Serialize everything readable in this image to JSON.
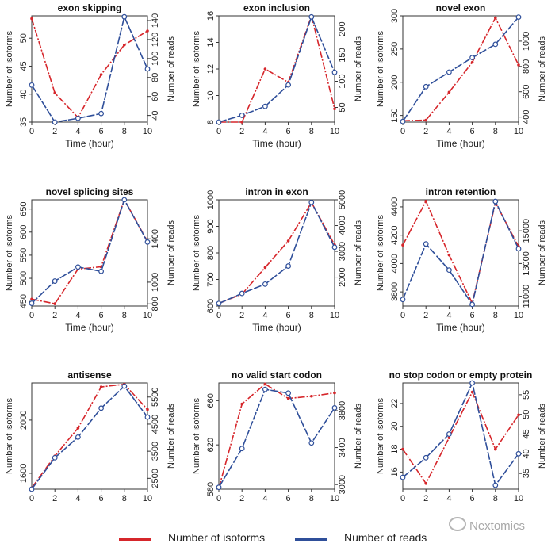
{
  "colors": {
    "isoforms": "#d6262b",
    "reads": "#2f4f9a",
    "axis": "#333333"
  },
  "chart_data": [
    {
      "type": "line",
      "title": "exon skipping",
      "xlabel": "Time (hour)",
      "ylabel_left": "Number of isoforms",
      "ylabel_right": "Number of reads",
      "x": [
        0,
        2,
        4,
        6,
        8,
        10
      ],
      "xlim": [
        0,
        10
      ],
      "xticks": [
        0,
        2,
        4,
        6,
        8,
        10
      ],
      "ylim_left": [
        35,
        54
      ],
      "yticks_left": [
        35,
        40,
        45,
        50
      ],
      "ylim_right": [
        33,
        145
      ],
      "yticks_right": [
        40,
        60,
        80,
        100,
        120,
        140
      ],
      "series": [
        {
          "name": "Number of isoforms",
          "axis": "left",
          "values": [
            53.5,
            40.2,
            35.8,
            43.5,
            48.8,
            51.3
          ]
        },
        {
          "name": "Number of reads",
          "axis": "right",
          "values": [
            72,
            33,
            37,
            42,
            144,
            89
          ]
        }
      ]
    },
    {
      "type": "line",
      "title": "exon inclusion",
      "xlabel": "Time (hour)",
      "ylabel_left": "Number of isoforms",
      "ylabel_right": "Number of reads",
      "x": [
        0,
        2,
        4,
        6,
        8,
        10
      ],
      "xlim": [
        0,
        10
      ],
      "xticks": [
        0,
        2,
        4,
        6,
        8,
        10
      ],
      "ylim_left": [
        8,
        16
      ],
      "yticks_left": [
        8,
        10,
        12,
        14,
        16
      ],
      "ylim_right": [
        22,
        225
      ],
      "yticks_right": [
        50,
        100,
        150,
        200
      ],
      "series": [
        {
          "name": "Number of isoforms",
          "axis": "left",
          "values": [
            8,
            8,
            12,
            11,
            16,
            9
          ]
        },
        {
          "name": "Number of reads",
          "axis": "right",
          "values": [
            22,
            35,
            52,
            93,
            223,
            117
          ]
        }
      ]
    },
    {
      "type": "line",
      "title": "novel exon",
      "xlabel": "Time (hour)",
      "ylabel_left": "Number of isoforms",
      "ylabel_right": "Number of reads",
      "x": [
        0,
        2,
        4,
        6,
        8,
        10
      ],
      "xlim": [
        0,
        10
      ],
      "xticks": [
        0,
        2,
        4,
        6,
        8,
        10
      ],
      "ylim_left": [
        140,
        300
      ],
      "yticks_left": [
        150,
        200,
        250,
        300
      ],
      "ylim_right": [
        360,
        1200
      ],
      "yticks_right": [
        400,
        600,
        800,
        1000
      ],
      "series": [
        {
          "name": "Number of isoforms",
          "axis": "left",
          "values": [
            142,
            143,
            185,
            230,
            297,
            226
          ]
        },
        {
          "name": "Number of reads",
          "axis": "right",
          "values": [
            365,
            640,
            755,
            870,
            975,
            1190
          ]
        }
      ]
    },
    {
      "type": "line",
      "title": "novel splicing sites",
      "xlabel": "Time (hour)",
      "ylabel_left": "Number of isoforms",
      "ylabel_right": "Number of reads",
      "x": [
        0,
        2,
        4,
        6,
        8,
        10
      ],
      "xlim": [
        0,
        10
      ],
      "xticks": [
        0,
        2,
        4,
        6,
        8,
        10
      ],
      "ylim_left": [
        440,
        670
      ],
      "yticks_left": [
        450,
        500,
        550,
        600,
        650
      ],
      "ylim_right": [
        780,
        1760
      ],
      "yticks_right": [
        800,
        1000,
        1400
      ],
      "series": [
        {
          "name": "Number of isoforms",
          "axis": "left",
          "values": [
            455,
            445,
            520,
            525,
            670,
            580
          ]
        },
        {
          "name": "Number of reads",
          "axis": "right",
          "values": [
            805,
            1010,
            1140,
            1100,
            1760,
            1370
          ]
        }
      ]
    },
    {
      "type": "line",
      "title": "intron in exon",
      "xlabel": "Time (hour)",
      "ylabel_left": "Number of isoforms",
      "ylabel_right": "Number of reads",
      "x": [
        0,
        2,
        4,
        6,
        8,
        10
      ],
      "xlim": [
        0,
        10
      ],
      "xticks": [
        0,
        2,
        4,
        6,
        8,
        10
      ],
      "ylim_left": [
        600,
        1000
      ],
      "yticks_left": [
        600,
        700,
        800,
        900,
        1000
      ],
      "ylim_right": [
        880,
        5000
      ],
      "yticks_right": [
        2000,
        3000,
        4000,
        5000
      ],
      "series": [
        {
          "name": "Number of isoforms",
          "axis": "left",
          "values": [
            610,
            645,
            745,
            845,
            990,
            830
          ]
        },
        {
          "name": "Number of reads",
          "axis": "right",
          "values": [
            980,
            1370,
            1730,
            2430,
            4900,
            3160
          ]
        }
      ]
    },
    {
      "type": "line",
      "title": "intron retention",
      "xlabel": "Time (hour)",
      "ylabel_left": "Number of isoforms",
      "ylabel_right": "Number of reads",
      "x": [
        0,
        2,
        4,
        6,
        8,
        10
      ],
      "xlim": [
        0,
        10
      ],
      "xticks": [
        0,
        2,
        4,
        6,
        8,
        10
      ],
      "ylim_left": [
        3700,
        4450
      ],
      "yticks_left": [
        3800,
        4000,
        4200,
        4400
      ],
      "ylim_right": [
        10400,
        16900
      ],
      "yticks_right": [
        11000,
        13000,
        15000
      ],
      "series": [
        {
          "name": "Number of isoforms",
          "axis": "left",
          "values": [
            4130,
            4440,
            4060,
            3720,
            4430,
            4120
          ]
        },
        {
          "name": "Number of reads",
          "axis": "right",
          "values": [
            10800,
            14200,
            12600,
            10500,
            16800,
            13900
          ]
        }
      ]
    },
    {
      "type": "line",
      "title": "antisense",
      "xlabel": "Time (hour)",
      "ylabel_left": "Number of isoforms",
      "ylabel_right": "Number of reads",
      "x": [
        0,
        2,
        4,
        6,
        8,
        10
      ],
      "xlim": [
        0,
        10
      ],
      "xticks": [
        0,
        2,
        4,
        6,
        8,
        10
      ],
      "ylim_left": [
        1480,
        2280
      ],
      "yticks_left": [
        1600,
        2000
      ],
      "ylim_right": [
        2100,
        6020
      ],
      "yticks_right": [
        2500,
        3500,
        4500,
        5500
      ],
      "series": [
        {
          "name": "Number of isoforms",
          "axis": "left",
          "values": [
            1490,
            1730,
            1940,
            2250,
            2270,
            2080
          ]
        },
        {
          "name": "Number of reads",
          "axis": "right",
          "values": [
            2100,
            3260,
            4020,
            5090,
            5900,
            4760
          ]
        }
      ]
    },
    {
      "type": "line",
      "title": "no valid start codon",
      "xlabel": "Time (hour)",
      "ylabel_left": "Number of isoforms",
      "ylabel_right": "Number of reads",
      "x": [
        0,
        2,
        4,
        6,
        8,
        10
      ],
      "xlim": [
        0,
        10
      ],
      "xticks": [
        0,
        2,
        4,
        6,
        8,
        10
      ],
      "ylim_left": [
        580,
        676
      ],
      "yticks_left": [
        580,
        620,
        660
      ],
      "ylim_right": [
        2950,
        4100
      ],
      "yticks_right": [
        3000,
        3400,
        3800
      ],
      "series": [
        {
          "name": "Number of isoforms",
          "axis": "left",
          "values": [
            581,
            657,
            675,
            662,
            664,
            667
          ]
        },
        {
          "name": "Number of reads",
          "axis": "right",
          "values": [
            2970,
            3390,
            4030,
            3990,
            3450,
            3830
          ]
        }
      ]
    },
    {
      "type": "line",
      "title": "no stop codon or empty protein",
      "xlabel": "Time (hour)",
      "ylabel_left": "Number of isoforms",
      "ylabel_right": "Number of reads",
      "x": [
        0,
        2,
        4,
        6,
        8,
        10
      ],
      "xlim": [
        0,
        10
      ],
      "xticks": [
        0,
        2,
        4,
        6,
        8,
        10
      ],
      "ylim_left": [
        14.5,
        23.8
      ],
      "yticks_left": [
        16,
        18,
        20,
        22
      ],
      "ylim_right": [
        31,
        58
      ],
      "yticks_right": [
        35,
        40,
        45,
        50,
        55
      ],
      "series": [
        {
          "name": "Number of isoforms",
          "axis": "left",
          "values": [
            18,
            15,
            19,
            23,
            18,
            21
          ]
        },
        {
          "name": "Number of reads",
          "axis": "right",
          "values": [
            34,
            39,
            45,
            58,
            32,
            40
          ]
        }
      ]
    }
  ],
  "legend": {
    "isoforms_label": "Number of isoforms",
    "reads_label": "Number of reads"
  },
  "watermark": {
    "text": "Nextomics"
  }
}
